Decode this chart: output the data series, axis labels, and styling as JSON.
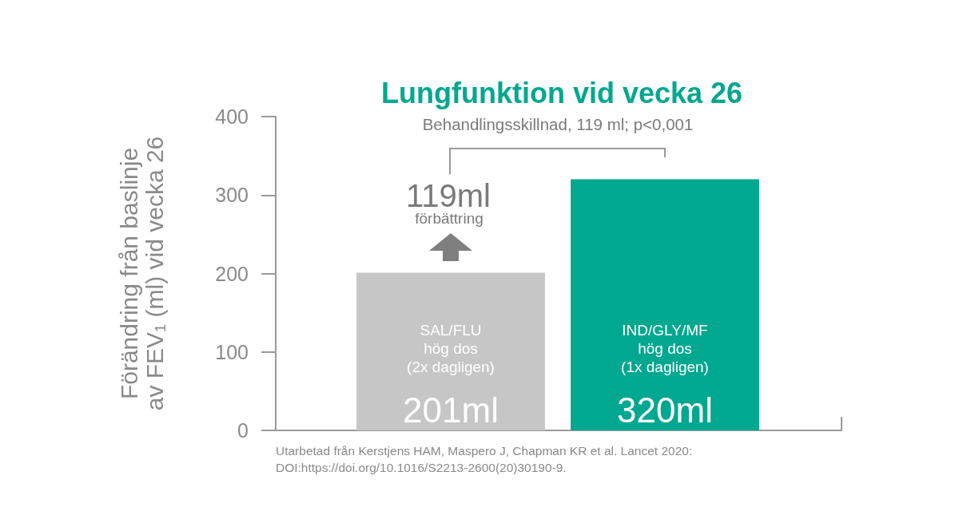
{
  "chart_data": {
    "type": "bar",
    "title": "Lungfunktion vid vecka 26",
    "ylabel": "Förändring från baslinje\nav FEV₁ (ml) vid vecka 26",
    "categories": [
      "SAL/FLU\nhög dos\n(2x dagligen)",
      "IND/GLY/MF\nhög dos\n(1x dagligen)"
    ],
    "values": [
      201,
      320
    ],
    "colors": [
      "#c6c6c6",
      "#00a88f"
    ],
    "value_labels": [
      "201ml",
      "320ml"
    ],
    "ylim": [
      0,
      400
    ],
    "yticks": [
      0,
      100,
      200,
      300,
      400
    ],
    "annotations": [
      "Behandlingsskillnad, 119 ml; p<0,001",
      "119ml",
      "förbättring",
      "Utarbetad från Kerstjens HAM, Maspero J, Chapman KR et al. Lancet 2020:\nDOI:https://doi.org/10.1016/S2213-2600(20)30190-9."
    ]
  }
}
